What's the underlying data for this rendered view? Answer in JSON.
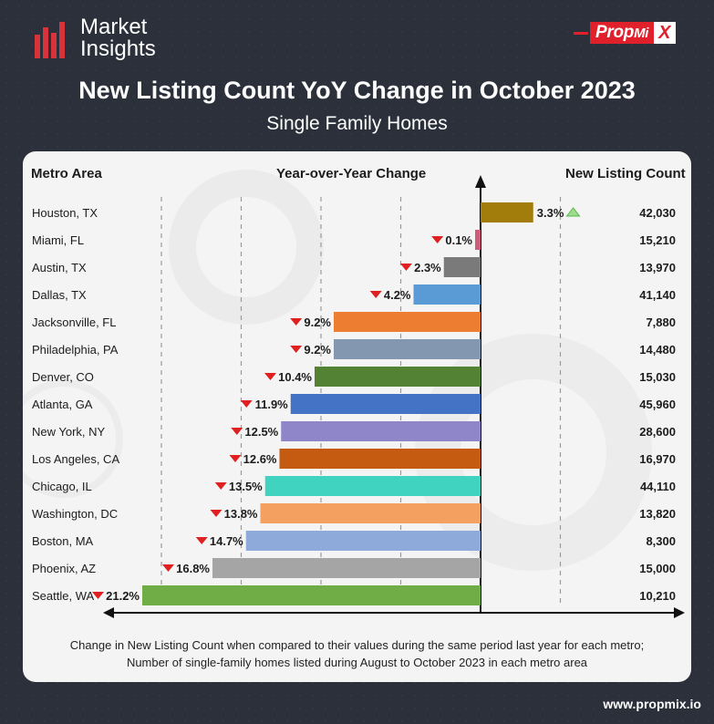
{
  "brand": {
    "name_line1": "Market",
    "name_line2": "Insights",
    "accent_color": "#d8333a"
  },
  "partner_logo": {
    "prefix": "Prop",
    "middle": "Mi",
    "suffix": "X",
    "color": "#e0202a"
  },
  "header": {
    "title": "New Listing Count YoY Change in October 2023",
    "subtitle": "Single Family Homes"
  },
  "columns": {
    "metro": "Metro Area",
    "yoy": "Year-over-Year Change",
    "count": "New Listing Count"
  },
  "chart_data": {
    "type": "bar",
    "orientation": "horizontal",
    "title": "New Listing Count YoY Change in October 2023",
    "xlabel": "Year-over-Year Change (%)",
    "ylabel": "Metro Area",
    "xlim": [
      -22,
      5
    ],
    "categories": [
      "Houston, TX",
      "Miami, FL",
      "Austin, TX",
      "Dallas, TX",
      "Jacksonville, FL",
      "Philadelphia, PA",
      "Denver, CO",
      "Atlanta, GA",
      "New York, NY",
      "Los Angeles, CA",
      "Chicago, IL",
      "Washington, DC",
      "Boston, MA",
      "Phoenix, AZ",
      "Seattle, WA"
    ],
    "values": [
      3.3,
      -0.1,
      -2.3,
      -4.2,
      -9.2,
      -9.2,
      -10.4,
      -11.9,
      -12.5,
      -12.6,
      -13.5,
      -13.8,
      -14.7,
      -16.8,
      -21.2
    ],
    "labels": [
      "3.3%",
      "0.1%",
      "2.3%",
      "4.2%",
      "9.2%",
      "9.2%",
      "10.4%",
      "11.9%",
      "12.5%",
      "12.6%",
      "13.5%",
      "13.8%",
      "14.7%",
      "16.8%",
      "21.2%"
    ],
    "listing_counts": [
      "42,030",
      "15,210",
      "13,970",
      "41,140",
      "7,880",
      "14,480",
      "15,030",
      "45,960",
      "28,600",
      "16,970",
      "44,110",
      "13,820",
      "8,300",
      "15,000",
      "10,210"
    ],
    "colors": [
      "#a27d0c",
      "#d05a7a",
      "#7a7a7a",
      "#5b9bd5",
      "#ed7d31",
      "#8497b0",
      "#548235",
      "#4472c4",
      "#8e86c8",
      "#c55a11",
      "#40d4c0",
      "#f4a060",
      "#8eaadb",
      "#a5a5a5",
      "#70ad47"
    ],
    "up_color": "#55b848",
    "down_color": "#e02020"
  },
  "footnote": {
    "line1": "Change in New Listing Count when compared to their values during the same period last year for each metro;",
    "line2": "Number of single-family homes listed during August to October 2023 in each metro area"
  },
  "website": "www.propmix.io"
}
